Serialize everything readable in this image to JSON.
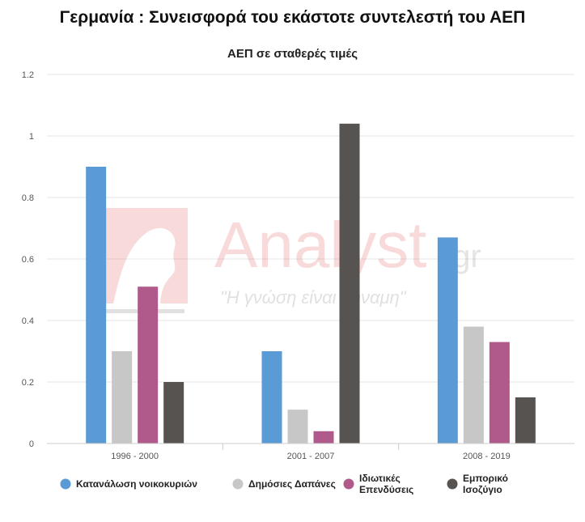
{
  "chart_data": {
    "type": "bar",
    "title": "Γερμανία : Συνεισφορά του εκάστοτε συντελεστή του ΑΕΠ",
    "subtitle": "ΑΕΠ σε σταθερές τιμές",
    "categories": [
      "1996 - 2000",
      "2001 - 2007",
      "2008 - 2019"
    ],
    "series": [
      {
        "name": "Κατανάλωση νοικοκυριών",
        "name_lines": [
          "Κατανάλωση νοικοκυριών"
        ],
        "color": "#5b9bd5",
        "values": [
          0.9,
          0.3,
          0.67
        ]
      },
      {
        "name": "Δημόσιες Δαπάνες",
        "name_lines": [
          "Δημόσιες Δαπάνες"
        ],
        "color": "#c7c7c7",
        "values": [
          0.3,
          0.11,
          0.38
        ]
      },
      {
        "name": "Ιδιωτικές Επενδύσεις",
        "name_lines": [
          "Ιδιωτικές",
          "Επενδύσεις"
        ],
        "color": "#b05a8c",
        "values": [
          0.51,
          0.04,
          0.33
        ]
      },
      {
        "name": "Εμπορικό Ισοζύγιο",
        "name_lines": [
          "Εμπορικό",
          "Ισοζύγιο"
        ],
        "color": "#575350",
        "values": [
          0.2,
          1.04,
          0.15
        ]
      }
    ],
    "ylim": [
      0,
      1.2
    ],
    "yticks": [
      "0",
      "0.2",
      "0.4",
      "0.6",
      "0.8",
      "1",
      "1.2"
    ],
    "grid": true,
    "legend": "bottom"
  },
  "watermark": {
    "brand": "Analyst",
    "suffix": ".gr",
    "tagline": "\"Η γνώση είναι δύναμη\""
  }
}
